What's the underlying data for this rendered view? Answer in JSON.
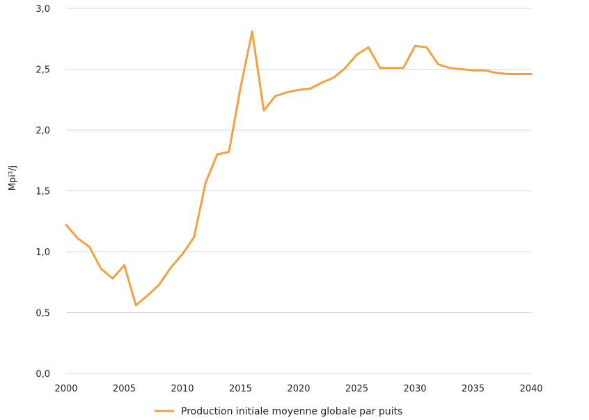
{
  "chart_data": {
    "type": "line",
    "ylabel": "Mpi³/j",
    "xlabel": "",
    "xlim": [
      2000,
      2040
    ],
    "ylim": [
      0,
      3.0
    ],
    "x_ticks": [
      "2000",
      "2005",
      "2010",
      "2015",
      "2020",
      "2025",
      "2030",
      "2035",
      "2040"
    ],
    "y_ticks": [
      "0,0",
      "0,5",
      "1,0",
      "1,5",
      "2,0",
      "2,5",
      "3,0"
    ],
    "grid": "horizontal",
    "legend_position": "bottom-center",
    "series": [
      {
        "name": "Production initiale moyenne globale par puits",
        "color": "#F4A040",
        "x": [
          2000,
          2001,
          2002,
          2003,
          2004,
          2005,
          2006,
          2007,
          2008,
          2009,
          2010,
          2011,
          2012,
          2013,
          2014,
          2015,
          2016,
          2017,
          2018,
          2019,
          2020,
          2021,
          2022,
          2023,
          2024,
          2025,
          2026,
          2027,
          2028,
          2029,
          2030,
          2031,
          2032,
          2033,
          2034,
          2035,
          2036,
          2037,
          2038,
          2039,
          2040
        ],
        "values": [
          1.22,
          1.11,
          1.04,
          0.86,
          0.78,
          0.89,
          0.56,
          0.64,
          0.73,
          0.87,
          0.98,
          1.12,
          1.57,
          1.8,
          1.82,
          2.35,
          2.81,
          2.16,
          2.28,
          2.31,
          2.33,
          2.34,
          2.39,
          2.43,
          2.51,
          2.62,
          2.68,
          2.51,
          2.51,
          2.51,
          2.69,
          2.68,
          2.54,
          2.51,
          2.5,
          2.49,
          2.49,
          2.47,
          2.46,
          2.46,
          2.46
        ]
      }
    ]
  }
}
